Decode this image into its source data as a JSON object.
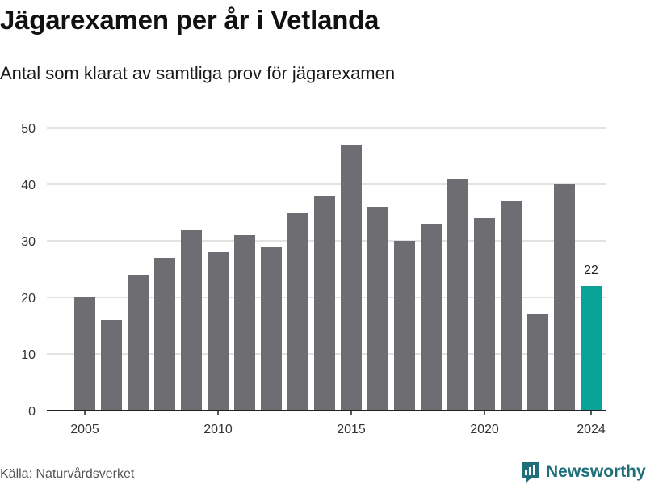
{
  "title": "Jägarexamen per år i Vetlanda",
  "subtitle": "Antal som klarat av samtliga prov för jägarexamen",
  "source": "Källa: Naturvårdsverket",
  "brand": {
    "name": "Newsworthy",
    "color": "#1f6f7a"
  },
  "colors": {
    "bar": "#6e6d72",
    "highlight": "#0aa39a",
    "grid": "#d9d9d9",
    "axis": "#222222"
  },
  "chart_data": {
    "type": "bar",
    "x": [
      2005,
      2006,
      2007,
      2008,
      2009,
      2010,
      2011,
      2012,
      2013,
      2014,
      2015,
      2016,
      2017,
      2018,
      2019,
      2020,
      2021,
      2022,
      2023,
      2024
    ],
    "values": [
      20,
      16,
      24,
      27,
      32,
      28,
      31,
      29,
      35,
      38,
      47,
      36,
      30,
      33,
      41,
      34,
      37,
      17,
      40,
      22
    ],
    "highlight_x": 2024,
    "data_labels": [
      {
        "x": 2024,
        "text": "22"
      }
    ],
    "xticks": [
      2005,
      2010,
      2015,
      2020,
      2024
    ],
    "yticks": [
      0,
      10,
      20,
      30,
      40,
      50
    ],
    "ylim": [
      0,
      50
    ],
    "grid": true
  }
}
